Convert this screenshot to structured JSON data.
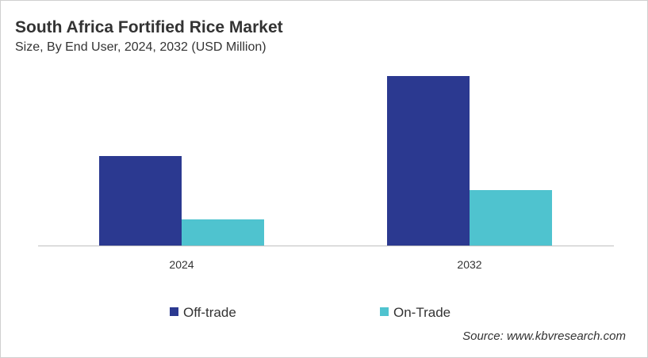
{
  "chart_data": {
    "type": "bar",
    "title": "South Africa Fortified Rice Market",
    "subtitle": "Size, By End User, 2024, 2032 (USD Million)",
    "categories": [
      "2024",
      "2032"
    ],
    "series": [
      {
        "name": "Off-trade",
        "values": [
          113,
          214
        ],
        "color": "#2b3990"
      },
      {
        "name": "On-Trade",
        "values": [
          33,
          70
        ],
        "color": "#4fc3cf"
      }
    ],
    "ylim": [
      0,
      230
    ],
    "xlabel": "",
    "ylabel": "",
    "grid": false,
    "legend": "bottom"
  },
  "source": "Source: www.kbvresearch.com"
}
